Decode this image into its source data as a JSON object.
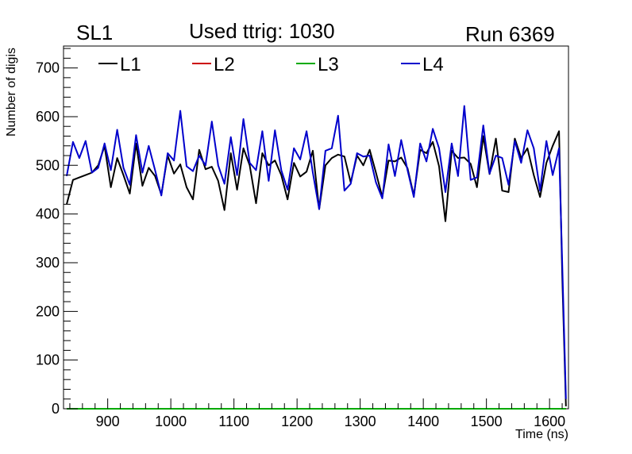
{
  "header": {
    "left_label": "SL1",
    "title": "Used ttrig: 1030",
    "right_label": "Run 6369"
  },
  "chart_data": {
    "type": "line",
    "title": "Used ttrig: 1030",
    "xlabel": "Time (ns)",
    "ylabel": "Number of digis",
    "xlim": [
      830,
      1630
    ],
    "ylim": [
      0,
      745
    ],
    "x_ticks": [
      900,
      1000,
      1100,
      1200,
      1300,
      1400,
      1500,
      1600
    ],
    "y_ticks": [
      0,
      100,
      200,
      300,
      400,
      500,
      600,
      700
    ],
    "legend_position": "top",
    "series": [
      {
        "name": "L1",
        "color": "#000000",
        "x": [
          835,
          845,
          855,
          865,
          875,
          885,
          895,
          905,
          915,
          925,
          935,
          945,
          955,
          965,
          975,
          985,
          995,
          1005,
          1015,
          1025,
          1035,
          1045,
          1055,
          1065,
          1075,
          1085,
          1095,
          1105,
          1115,
          1125,
          1135,
          1145,
          1155,
          1165,
          1175,
          1185,
          1195,
          1205,
          1215,
          1225,
          1235,
          1245,
          1255,
          1265,
          1275,
          1285,
          1295,
          1305,
          1315,
          1325,
          1335,
          1345,
          1355,
          1365,
          1375,
          1385,
          1395,
          1405,
          1415,
          1425,
          1435,
          1445,
          1455,
          1465,
          1475,
          1485,
          1495,
          1505,
          1515,
          1525,
          1535,
          1545,
          1555,
          1565,
          1575,
          1585,
          1595,
          1605,
          1615,
          1620,
          1626
        ],
        "values": [
          420,
          470,
          475,
          480,
          485,
          500,
          540,
          455,
          515,
          480,
          442,
          545,
          458,
          495,
          478,
          440,
          520,
          483,
          502,
          455,
          430,
          532,
          492,
          497,
          468,
          408,
          525,
          450,
          535,
          500,
          422,
          525,
          500,
          510,
          480,
          430,
          505,
          477,
          487,
          530,
          410,
          500,
          515,
          522,
          518,
          465,
          520,
          500,
          532,
          485,
          435,
          510,
          508,
          516,
          494,
          438,
          532,
          525,
          548,
          498,
          385,
          530,
          515,
          516,
          503,
          455,
          560,
          482,
          555,
          448,
          445,
          555,
          515,
          535,
          480,
          435,
          505,
          540,
          570,
          275,
          5
        ]
      },
      {
        "name": "L2",
        "color": "#cc0000",
        "x": [
          835,
          1626
        ],
        "values": [
          0,
          0
        ]
      },
      {
        "name": "L3",
        "color": "#00aa00",
        "x": [
          835,
          1626
        ],
        "values": [
          0,
          0
        ]
      },
      {
        "name": "L4",
        "color": "#0000cc",
        "x": [
          835,
          845,
          855,
          865,
          875,
          885,
          895,
          905,
          915,
          925,
          935,
          945,
          955,
          965,
          975,
          985,
          995,
          1005,
          1015,
          1025,
          1035,
          1045,
          1055,
          1065,
          1075,
          1085,
          1095,
          1105,
          1115,
          1125,
          1135,
          1145,
          1155,
          1165,
          1175,
          1185,
          1195,
          1205,
          1215,
          1225,
          1235,
          1245,
          1255,
          1265,
          1275,
          1285,
          1295,
          1305,
          1315,
          1325,
          1335,
          1345,
          1355,
          1365,
          1375,
          1385,
          1395,
          1405,
          1415,
          1425,
          1435,
          1445,
          1455,
          1465,
          1475,
          1485,
          1495,
          1505,
          1515,
          1525,
          1535,
          1545,
          1555,
          1565,
          1575,
          1585,
          1595,
          1605,
          1615,
          1620,
          1626
        ],
        "values": [
          478,
          548,
          515,
          550,
          485,
          495,
          545,
          490,
          573,
          495,
          460,
          562,
          485,
          540,
          490,
          438,
          525,
          510,
          612,
          498,
          488,
          520,
          500,
          590,
          500,
          462,
          558,
          480,
          595,
          505,
          490,
          570,
          468,
          572,
          490,
          450,
          535,
          512,
          570,
          485,
          410,
          530,
          535,
          602,
          448,
          462,
          525,
          518,
          520,
          465,
          432,
          543,
          478,
          552,
          490,
          435,
          545,
          508,
          575,
          535,
          445,
          545,
          478,
          622,
          470,
          475,
          582,
          483,
          520,
          515,
          460,
          550,
          505,
          572,
          535,
          448,
          550,
          480,
          535,
          300,
          20
        ]
      }
    ]
  }
}
